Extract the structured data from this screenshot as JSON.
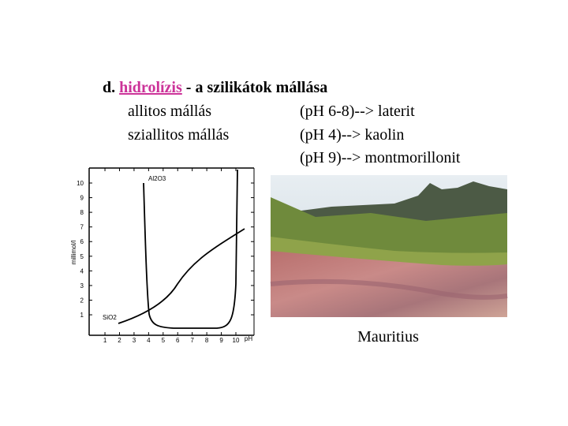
{
  "heading": {
    "prefix": "d.",
    "link": "hidrolízis",
    "rest": "- a szilikátok mállása"
  },
  "rows": [
    {
      "name": "allitos mállás",
      "result": "(pH 6-8)--> laterit"
    },
    {
      "name": "sziallitos mállás",
      "result": "(pH 4)--> kaolin"
    },
    {
      "result": "(pH 9)--> montmorillonit"
    }
  ],
  "chart": {
    "ylabel": "millimol/l",
    "xunit": "pH",
    "yticks": [
      1,
      2,
      3,
      4,
      5,
      6,
      7,
      8,
      9,
      10
    ],
    "xticks": [
      1,
      2,
      3,
      4,
      5,
      6,
      7,
      8,
      9,
      10
    ],
    "curves": [
      "Al2O3",
      "SiO2"
    ]
  },
  "caption": "Mauritius"
}
